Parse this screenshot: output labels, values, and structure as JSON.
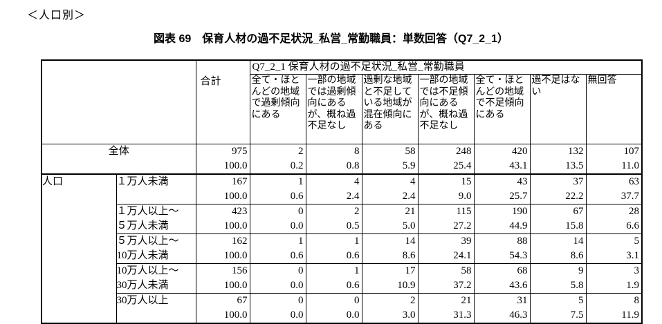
{
  "page": {
    "section_label": "＜人口別＞",
    "title": "図表 69　保育人材の過不足状況_私営_常勤職員：単数回答（Q7_2_1）"
  },
  "table": {
    "corner_label": "",
    "total_col_label": "合計",
    "group_header": "Q7_2_1 保育人材の過不足状況_私営_常勤職員",
    "answer_headers": [
      "全て・ほとんどの地域で過剰傾向にある",
      "一部の地域では過剰傾向にあるが、概ね過不足なし",
      "過剰な地域と不足している地域が混在傾向にある",
      "一部の地域では不足傾向にあるが、概ね過不足なし",
      "全て・ほとんどの地域で不足傾向にある",
      "過不足はない",
      "無回答"
    ],
    "row_group_label": "人口",
    "rows": [
      {
        "label": "全体",
        "counts": [
          "975",
          "2",
          "8",
          "58",
          "248",
          "420",
          "132",
          "107"
        ],
        "pcts": [
          "100.0",
          "0.2",
          "0.8",
          "5.9",
          "25.4",
          "43.1",
          "13.5",
          "11.0"
        ]
      },
      {
        "label": "１万人未満",
        "counts": [
          "167",
          "1",
          "4",
          "4",
          "15",
          "43",
          "37",
          "63"
        ],
        "pcts": [
          "100.0",
          "0.6",
          "2.4",
          "2.4",
          "9.0",
          "25.7",
          "22.2",
          "37.7"
        ]
      },
      {
        "label": "１万人以上～\n５万人未満",
        "counts": [
          "423",
          "0",
          "2",
          "21",
          "115",
          "190",
          "67",
          "28"
        ],
        "pcts": [
          "100.0",
          "0.0",
          "0.5",
          "5.0",
          "27.2",
          "44.9",
          "15.8",
          "6.6"
        ]
      },
      {
        "label": "５万人以上～\n10万人未満",
        "counts": [
          "162",
          "1",
          "1",
          "14",
          "39",
          "88",
          "14",
          "5"
        ],
        "pcts": [
          "100.0",
          "0.6",
          "0.6",
          "8.6",
          "24.1",
          "54.3",
          "8.6",
          "3.1"
        ]
      },
      {
        "label": "10万人以上～\n30万人未満",
        "counts": [
          "156",
          "0",
          "1",
          "17",
          "58",
          "68",
          "9",
          "3"
        ],
        "pcts": [
          "100.0",
          "0.0",
          "0.6",
          "10.9",
          "37.2",
          "43.6",
          "5.8",
          "1.9"
        ]
      },
      {
        "label": "30万人以上",
        "counts": [
          "67",
          "0",
          "0",
          "2",
          "21",
          "31",
          "5",
          "8"
        ],
        "pcts": [
          "100.0",
          "0.0",
          "0.0",
          "3.0",
          "31.3",
          "46.3",
          "7.5",
          "11.9"
        ]
      }
    ]
  }
}
